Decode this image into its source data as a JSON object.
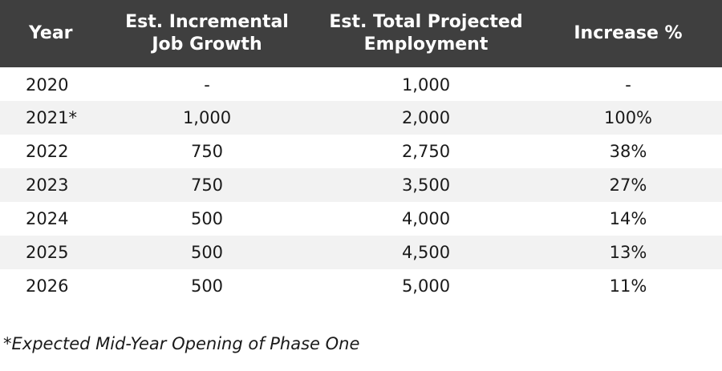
{
  "table": {
    "headers": {
      "year": "Year",
      "growth_line1": "Est. Incremental",
      "growth_line2": "Job Growth",
      "total_line1": "Est. Total Projected",
      "total_line2": "Employment",
      "increase": "Increase %"
    },
    "rows": [
      {
        "year": "2020",
        "growth": "-",
        "total": "1,000",
        "increase": "-"
      },
      {
        "year": "2021*",
        "growth": "1,000",
        "total": "2,000",
        "increase": "100%"
      },
      {
        "year": "2022",
        "growth": "750",
        "total": "2,750",
        "increase": "38%"
      },
      {
        "year": "2023",
        "growth": "750",
        "total": "3,500",
        "increase": "27%"
      },
      {
        "year": "2024",
        "growth": "500",
        "total": "4,000",
        "increase": "14%"
      },
      {
        "year": "2025",
        "growth": "500",
        "total": "4,500",
        "increase": "13%"
      },
      {
        "year": "2026",
        "growth": "500",
        "total": "5,000",
        "increase": "11%"
      }
    ]
  },
  "footnote": "*Expected Mid-Year Opening of Phase One",
  "colors": {
    "header_bg": "#3f3f3f",
    "header_text": "#ffffff",
    "stripe_bg": "#f2f2f2"
  }
}
